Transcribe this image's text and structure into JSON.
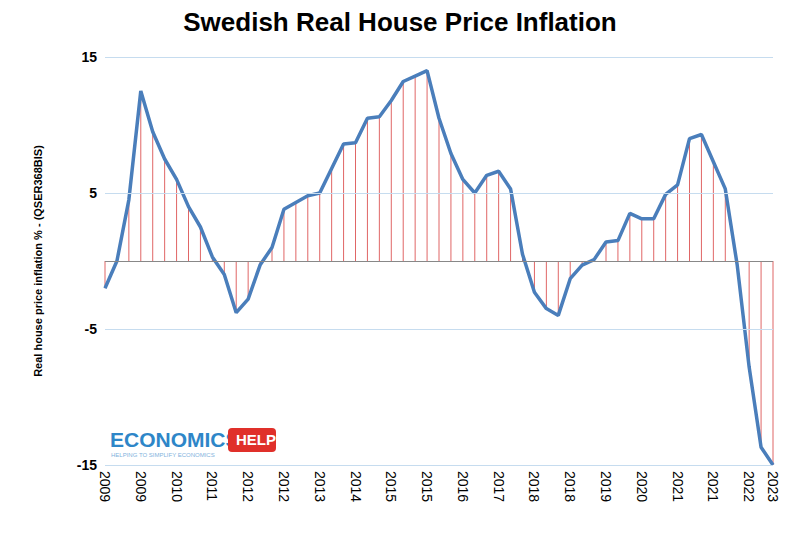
{
  "chart_data": {
    "type": "line",
    "title": "Swedish Real House Price Inflation",
    "y_label": "Real house price inflation % - (QSER368BIS)",
    "annotations": [
      "ECONOMICS",
      "HELP",
      "HELPING TO SIMPLIFY ECONOMICS"
    ],
    "categories": [
      "2009",
      null,
      null,
      "2009",
      null,
      null,
      "2010",
      null,
      null,
      "2011",
      null,
      null,
      "2012",
      null,
      null,
      "2012",
      null,
      null,
      "2013",
      null,
      null,
      "2014",
      null,
      null,
      "2015",
      null,
      null,
      "2015",
      null,
      null,
      "2016",
      null,
      null,
      "2017",
      null,
      null,
      "2018",
      null,
      null,
      "2018",
      null,
      null,
      "2019",
      null,
      null,
      "2020",
      null,
      null,
      "2021",
      null,
      null,
      "2021",
      null,
      null,
      "2022",
      null,
      "2023"
    ],
    "series": [
      {
        "name": "Real house price inflation %",
        "color": "#4a7ebb",
        "values": [
          -2,
          0,
          4.5,
          12.5,
          9.5,
          7.5,
          6,
          4,
          2.5,
          0.3,
          -1,
          -3.8,
          -2.8,
          -0.3,
          1,
          3.8,
          4.3,
          4.8,
          5,
          6.8,
          8.6,
          8.7,
          10.5,
          10.6,
          11.8,
          13.2,
          13.6,
          14,
          10.5,
          7.9,
          6,
          5,
          6.3,
          6.6,
          5.3,
          0.5,
          -2.3,
          -3.5,
          -4,
          -1.3,
          -0.3,
          0.1,
          1.4,
          1.5,
          3.5,
          3.1,
          3.1,
          4.9,
          5.6,
          9,
          9.3,
          7.3,
          5.3,
          -0.3,
          -7.8,
          -13.7,
          -15
        ]
      }
    ],
    "ylim": [
      -15,
      15
    ],
    "yticks": [
      -15,
      -5,
      5,
      15
    ],
    "grid": true
  }
}
